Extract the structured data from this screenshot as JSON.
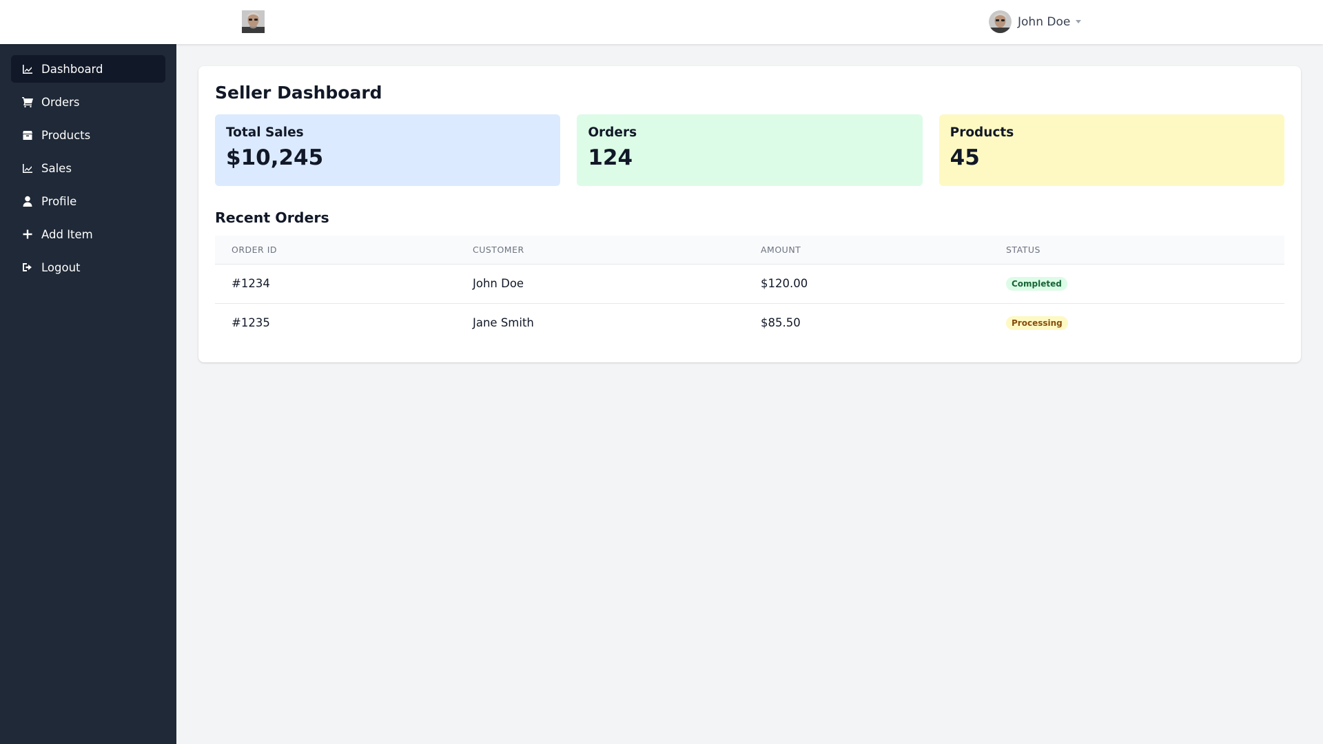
{
  "header": {
    "user_name": "John Doe"
  },
  "sidebar": {
    "items": [
      {
        "label": "Dashboard",
        "icon": "chart-line-icon",
        "active": true
      },
      {
        "label": "Orders",
        "icon": "shopping-cart-icon"
      },
      {
        "label": "Products",
        "icon": "box-icon"
      },
      {
        "label": "Sales",
        "icon": "chart-line-icon"
      },
      {
        "label": "Profile",
        "icon": "user-icon"
      },
      {
        "label": "Add Item",
        "icon": "plus-icon"
      },
      {
        "label": "Logout",
        "icon": "sign-out-icon"
      }
    ]
  },
  "main": {
    "title": "Seller Dashboard",
    "stats": [
      {
        "label": "Total Sales",
        "value": "$10,245",
        "color": "#dbeafe"
      },
      {
        "label": "Orders",
        "value": "124",
        "color": "#dcfce7"
      },
      {
        "label": "Products",
        "value": "45",
        "color": "#fef9c3"
      }
    ],
    "recent_orders": {
      "title": "Recent Orders",
      "columns": [
        "ORDER ID",
        "CUSTOMER",
        "AMOUNT",
        "STATUS"
      ],
      "rows": [
        {
          "order_id": "#1234",
          "customer": "John Doe",
          "amount": "$120.00",
          "status": "Completed"
        },
        {
          "order_id": "#1235",
          "customer": "Jane Smith",
          "amount": "$85.50",
          "status": "Processing"
        }
      ]
    }
  },
  "colors": {
    "sidebar_bg": "#1f2937",
    "sidebar_active": "#111827",
    "page_bg": "#f3f4f6",
    "status_completed": "#dcfce7",
    "status_processing": "#fef9c3"
  }
}
